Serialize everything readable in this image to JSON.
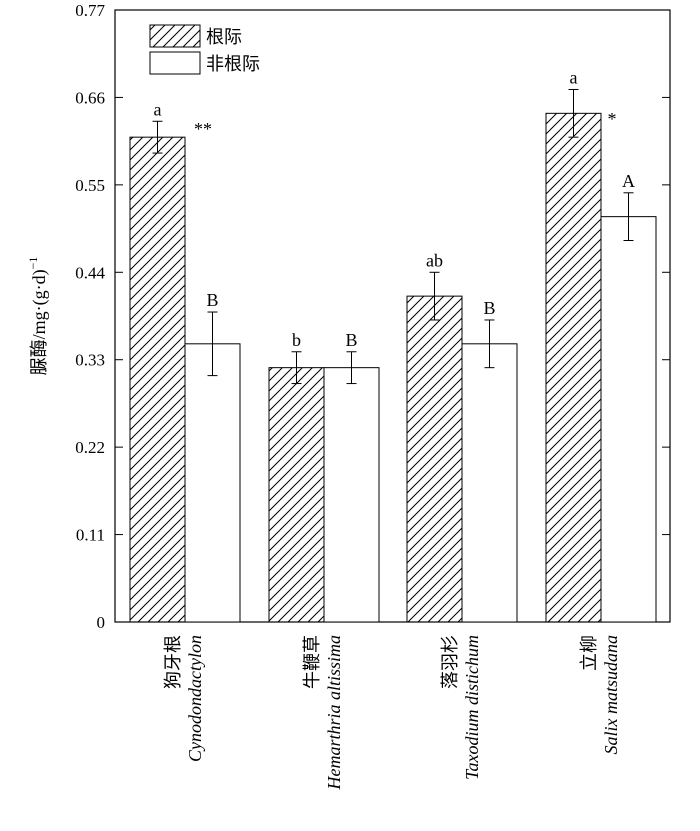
{
  "chart_data": {
    "type": "bar",
    "ylabel_main": "脲酶/mg·(g·d)",
    "ylabel_sup": "−1",
    "xlabel": "",
    "ylim": [
      0,
      0.77
    ],
    "yticks": [
      "0",
      "0.11",
      "0.22",
      "0.33",
      "0.44",
      "0.55",
      "0.66",
      "0.77"
    ],
    "legend_position": "top-left",
    "categories": [
      {
        "cn": "狗牙根",
        "latin": "Cynodondactylon"
      },
      {
        "cn": "牛鞭草",
        "latin": "Hemarthria altissima"
      },
      {
        "cn": "落羽杉",
        "latin": "Taxodium distichum"
      },
      {
        "cn": "立柳",
        "latin": "Salix matsudana"
      }
    ],
    "series": [
      {
        "name": "根际",
        "pattern": "hatch",
        "values": [
          0.61,
          0.32,
          0.41,
          0.64
        ],
        "errors": [
          0.02,
          0.02,
          0.03,
          0.03
        ],
        "labels": [
          "a",
          "b",
          "ab",
          "a"
        ]
      },
      {
        "name": "非根际",
        "pattern": "solid-white",
        "values": [
          0.35,
          0.32,
          0.35,
          0.51
        ],
        "errors": [
          0.04,
          0.02,
          0.03,
          0.03
        ],
        "labels": [
          "B",
          "B",
          "B",
          "A"
        ]
      }
    ],
    "significance": [
      "**",
      "",
      "",
      "*"
    ]
  }
}
